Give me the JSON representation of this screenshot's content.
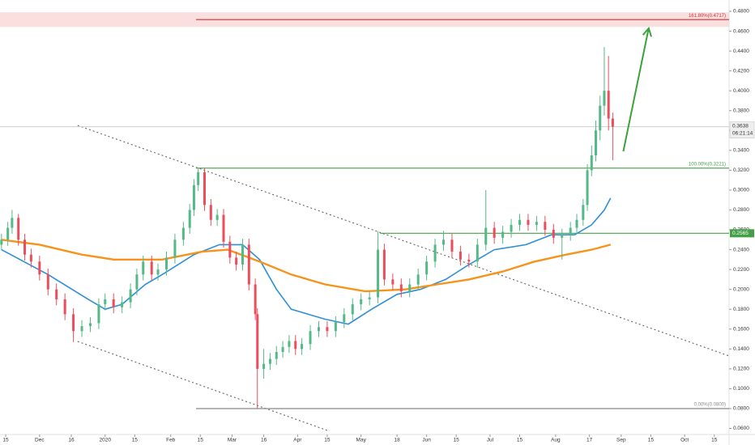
{
  "chart_data": {
    "type": "candlestick",
    "up_color": "#53b987",
    "down_color": "#eb4d5c",
    "xlim": [
      -2.7,
      342
    ],
    "ylim": [
      0.0539,
      0.4914
    ],
    "xticks": [
      {
        "value": 0,
        "label": "15"
      },
      {
        "value": 16,
        "label": "Dec"
      },
      {
        "value": 31,
        "label": "16"
      },
      {
        "value": 47,
        "label": "2020"
      },
      {
        "value": 61,
        "label": "15"
      },
      {
        "value": 78,
        "label": "Feb"
      },
      {
        "value": 92,
        "label": "15"
      },
      {
        "value": 107,
        "label": "Mar"
      },
      {
        "value": 122,
        "label": "16"
      },
      {
        "value": 138,
        "label": "Apr"
      },
      {
        "value": 152,
        "label": "15"
      },
      {
        "value": 168,
        "label": "May"
      },
      {
        "value": 185,
        "label": "18"
      },
      {
        "value": 199,
        "label": "Jun"
      },
      {
        "value": 213,
        "label": "15"
      },
      {
        "value": 229,
        "label": "Jul"
      },
      {
        "value": 243,
        "label": "15"
      },
      {
        "value": 260,
        "label": "Aug"
      },
      {
        "value": 276,
        "label": "17"
      },
      {
        "value": 291,
        "label": "Sep"
      },
      {
        "value": 305,
        "label": "15"
      },
      {
        "value": 321,
        "label": "Oct"
      },
      {
        "value": 335,
        "label": "15"
      }
    ],
    "yticks": [
      {
        "value": 0.06,
        "label": "0.0600"
      },
      {
        "value": 0.08,
        "label": "0.0800"
      },
      {
        "value": 0.1,
        "label": "0.1000"
      },
      {
        "value": 0.12,
        "label": "0.1200"
      },
      {
        "value": 0.14,
        "label": "0.1400"
      },
      {
        "value": 0.16,
        "label": "0.1600"
      },
      {
        "value": 0.18,
        "label": "0.1800"
      },
      {
        "value": 0.2,
        "label": "0.2000"
      },
      {
        "value": 0.22,
        "label": "0.2200"
      },
      {
        "value": 0.24,
        "label": "0.2400"
      },
      {
        "value": 0.26,
        "label": "0.2600"
      },
      {
        "value": 0.28,
        "label": "0.2800"
      },
      {
        "value": 0.3,
        "label": "0.3000"
      },
      {
        "value": 0.32,
        "label": "0.3200"
      },
      {
        "value": 0.34,
        "label": "0.3400"
      },
      {
        "value": 0.36,
        "label": "0.3600"
      },
      {
        "value": 0.38,
        "label": "0.3800"
      },
      {
        "value": 0.4,
        "label": "0.4000"
      },
      {
        "value": 0.42,
        "label": "0.4200"
      },
      {
        "value": 0.44,
        "label": "0.4400"
      },
      {
        "value": 0.46,
        "label": "0.4600"
      },
      {
        "value": 0.48,
        "label": "0.4800"
      }
    ],
    "x": [
      -2,
      1,
      3,
      6,
      9,
      12,
      16,
      20,
      24,
      28,
      32,
      36,
      40,
      44,
      47,
      51,
      55,
      59,
      62,
      65,
      69,
      72,
      76,
      80,
      84,
      87,
      89,
      91,
      94,
      97,
      100,
      103,
      106,
      109,
      112,
      115,
      118,
      119,
      122,
      125,
      128,
      131,
      134,
      137,
      140,
      144,
      148,
      152,
      156,
      160,
      164,
      168,
      172,
      176,
      179,
      183,
      187,
      191,
      195,
      199,
      203,
      207,
      211,
      215,
      219,
      223,
      227,
      231,
      235,
      239,
      243,
      247,
      251,
      255,
      259,
      263,
      267,
      270,
      273,
      275,
      277,
      279,
      281,
      283,
      285,
      287
    ],
    "open": [
      0.245,
      0.25,
      0.262,
      0.272,
      0.25,
      0.235,
      0.228,
      0.215,
      0.2,
      0.19,
      0.175,
      0.158,
      0.163,
      0.166,
      0.185,
      0.19,
      0.182,
      0.187,
      0.2,
      0.215,
      0.228,
      0.215,
      0.22,
      0.232,
      0.25,
      0.262,
      0.28,
      0.305,
      0.318,
      0.285,
      0.27,
      0.275,
      0.248,
      0.232,
      0.225,
      0.245,
      0.205,
      0.175,
      0.12,
      0.125,
      0.13,
      0.137,
      0.142,
      0.148,
      0.14,
      0.145,
      0.158,
      0.162,
      0.158,
      0.167,
      0.175,
      0.185,
      0.19,
      0.192,
      0.24,
      0.21,
      0.205,
      0.198,
      0.205,
      0.215,
      0.228,
      0.245,
      0.25,
      0.238,
      0.23,
      0.228,
      0.245,
      0.262,
      0.252,
      0.258,
      0.265,
      0.27,
      0.265,
      0.268,
      0.26,
      0.252,
      0.255,
      0.262,
      0.27,
      0.285,
      0.32,
      0.335,
      0.36,
      0.385,
      0.4,
      0.372
    ],
    "high": [
      0.256,
      0.268,
      0.28,
      0.276,
      0.256,
      0.241,
      0.234,
      0.221,
      0.206,
      0.196,
      0.181,
      0.169,
      0.172,
      0.191,
      0.196,
      0.196,
      0.193,
      0.206,
      0.221,
      0.234,
      0.234,
      0.226,
      0.238,
      0.256,
      0.268,
      0.286,
      0.311,
      0.3221,
      0.322,
      0.291,
      0.281,
      0.281,
      0.254,
      0.238,
      0.251,
      0.251,
      0.211,
      0.181,
      0.14,
      0.136,
      0.143,
      0.148,
      0.154,
      0.154,
      0.151,
      0.164,
      0.168,
      0.168,
      0.173,
      0.181,
      0.191,
      0.196,
      0.198,
      0.2585,
      0.246,
      0.216,
      0.211,
      0.211,
      0.221,
      0.234,
      0.251,
      0.259,
      0.256,
      0.244,
      0.236,
      0.251,
      0.3,
      0.268,
      0.264,
      0.271,
      0.276,
      0.276,
      0.274,
      0.274,
      0.266,
      0.261,
      0.268,
      0.276,
      0.291,
      0.326,
      0.345,
      0.37,
      0.395,
      0.444,
      0.435,
      0.378
    ],
    "low": [
      0.24,
      0.244,
      0.256,
      0.244,
      0.229,
      0.222,
      0.209,
      0.194,
      0.184,
      0.169,
      0.147,
      0.152,
      0.157,
      0.16,
      0.179,
      0.176,
      0.176,
      0.181,
      0.194,
      0.209,
      0.209,
      0.209,
      0.214,
      0.226,
      0.244,
      0.256,
      0.274,
      0.299,
      0.279,
      0.264,
      0.264,
      0.242,
      0.226,
      0.219,
      0.219,
      0.199,
      0.169,
      0.08,
      0.11,
      0.119,
      0.124,
      0.131,
      0.136,
      0.134,
      0.134,
      0.139,
      0.152,
      0.152,
      0.152,
      0.161,
      0.169,
      0.179,
      0.184,
      0.186,
      0.204,
      0.199,
      0.192,
      0.192,
      0.199,
      0.209,
      0.222,
      0.239,
      0.232,
      0.224,
      0.222,
      0.222,
      0.239,
      0.246,
      0.246,
      0.252,
      0.259,
      0.259,
      0.259,
      0.254,
      0.246,
      0.23,
      0.249,
      0.256,
      0.264,
      0.279,
      0.314,
      0.329,
      0.35,
      0.375,
      0.36,
      0.33
    ],
    "close": [
      0.25,
      0.262,
      0.272,
      0.25,
      0.235,
      0.228,
      0.215,
      0.2,
      0.19,
      0.175,
      0.158,
      0.163,
      0.166,
      0.185,
      0.19,
      0.182,
      0.187,
      0.2,
      0.215,
      0.228,
      0.215,
      0.22,
      0.232,
      0.25,
      0.262,
      0.28,
      0.305,
      0.318,
      0.285,
      0.27,
      0.275,
      0.248,
      0.232,
      0.225,
      0.245,
      0.205,
      0.175,
      0.12,
      0.125,
      0.13,
      0.137,
      0.142,
      0.148,
      0.14,
      0.145,
      0.158,
      0.162,
      0.158,
      0.167,
      0.175,
      0.185,
      0.19,
      0.192,
      0.24,
      0.21,
      0.205,
      0.198,
      0.205,
      0.215,
      0.228,
      0.245,
      0.25,
      0.238,
      0.23,
      0.228,
      0.245,
      0.262,
      0.252,
      0.258,
      0.265,
      0.27,
      0.265,
      0.268,
      0.26,
      0.252,
      0.255,
      0.262,
      0.27,
      0.285,
      0.32,
      0.335,
      0.36,
      0.385,
      0.4,
      0.372,
      0.3638
    ],
    "moving_averages": [
      {
        "color": "#2e8fd6",
        "x": [
          -2,
          20,
          39,
          47,
          55,
          66,
          74,
          89,
          101,
          112,
          120,
          128,
          135,
          151,
          162,
          173,
          185,
          196,
          208,
          219,
          231,
          246,
          258,
          269,
          277,
          283,
          286
        ],
        "values": [
          0.24,
          0.215,
          0.19,
          0.18,
          0.185,
          0.205,
          0.215,
          0.235,
          0.245,
          0.245,
          0.23,
          0.2,
          0.18,
          0.17,
          0.165,
          0.18,
          0.195,
          0.2,
          0.21,
          0.225,
          0.24,
          0.245,
          0.255,
          0.255,
          0.265,
          0.28,
          0.292
        ]
      },
      {
        "color": "#f7931a",
        "x": [
          -2,
          16,
          36,
          51,
          74,
          93,
          105,
          120,
          135,
          151,
          170,
          189,
          204,
          219,
          235,
          250,
          265,
          277,
          286
        ],
        "values": [
          0.25,
          0.245,
          0.235,
          0.23,
          0.23,
          0.238,
          0.24,
          0.228,
          0.215,
          0.205,
          0.198,
          0.2,
          0.205,
          0.21,
          0.218,
          0.228,
          0.235,
          0.24,
          0.245
        ]
      }
    ],
    "levels": [
      {
        "value": 0.4717,
        "label": "161.80%(0.4717)",
        "color": "#d32f2f",
        "start": 90
      },
      {
        "value": 0.3221,
        "label": "100.00%(0.3221)",
        "color": "#43a047",
        "start": 90
      },
      {
        "value": 0.2565,
        "color": "#43a047",
        "start": 177,
        "axis_label": "0.2565"
      },
      {
        "value": 0.08,
        "label": "0.00%(0.0800)",
        "color": "#888888",
        "start": 90
      }
    ],
    "last_price": {
      "value": 0.3638,
      "label": "0.3638",
      "countdown": "06:21:14"
    },
    "trendlines": [
      {
        "x": [
          34,
          342
        ],
        "y": [
          0.3651,
          0.133
        ]
      },
      {
        "x": [
          34,
          152
        ],
        "y": [
          0.1476,
          0.058
        ]
      }
    ],
    "arrow": {
      "color": "#3aa33a",
      "x": [
        292,
        304
      ],
      "y": [
        0.339,
        0.463
      ]
    }
  }
}
